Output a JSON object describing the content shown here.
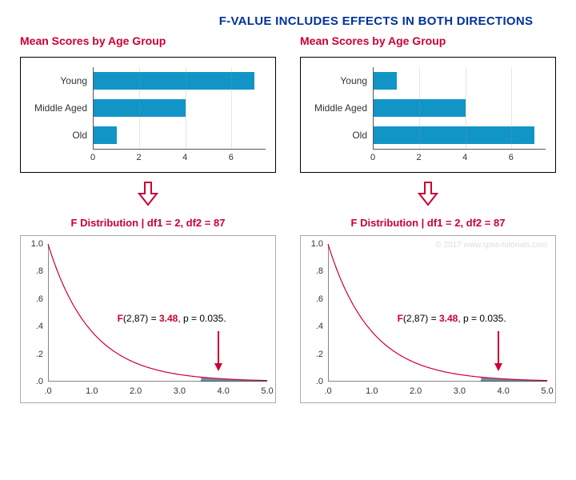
{
  "main_title": "F-VALUE INCLUDES EFFECTS IN BOTH DIRECTIONS",
  "bar_title": "Mean Scores by Age Group",
  "bar_color": "#1195c7",
  "title_color": "#cc0033",
  "heading_color": "#003399",
  "bar_categories": [
    "Young",
    "Middle Aged",
    "Old"
  ],
  "bar_xticks": [
    0,
    2,
    4,
    6
  ],
  "bar_xmax": 7.5,
  "left_bar_values": [
    7.0,
    4.0,
    1.0
  ],
  "right_bar_values": [
    1.0,
    4.0,
    7.0
  ],
  "f_title": "F Distribution | df1 = 2, df2 = 87",
  "f_xticks": [
    ".0",
    "1.0",
    "2.0",
    "3.0",
    "4.0",
    "5.0"
  ],
  "f_yticks": [
    "1.0",
    ".8",
    ".6",
    ".4",
    ".2",
    ".0"
  ],
  "f_xmax": 5.0,
  "f_ymax": 1.0,
  "f_curve_color": "#cc0033",
  "f_annotation_pre": "F",
  "f_annotation_df": "(2,87) = ",
  "f_annotation_val": "3.48",
  "f_annotation_post": ", p = 0.035.",
  "f_critical_x": 3.48,
  "watermark": "© 2017 www.spss-tutorials.com"
}
